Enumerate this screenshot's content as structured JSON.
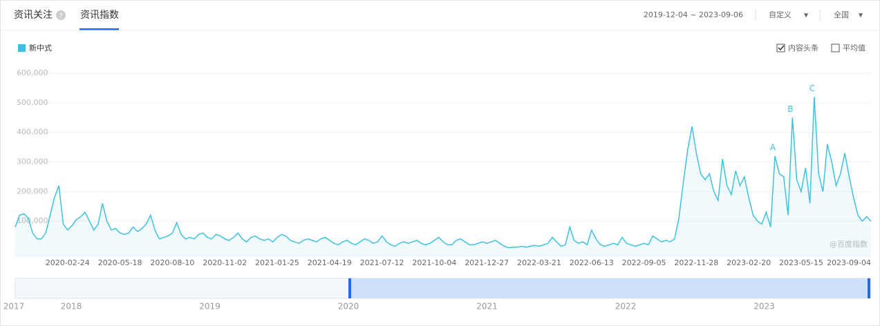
{
  "header": {
    "tabs": [
      "资讯关注",
      "资讯指数"
    ],
    "date_range": "2019-12-04 ~ 2023-09-06",
    "period": "自定义",
    "region": "全国"
  },
  "options": {
    "checkboxes": [
      {
        "label": "内容头条",
        "checked": true
      },
      {
        "label": "平均值",
        "checked": false
      }
    ]
  },
  "watermark": "@百度指数",
  "range_slider": {
    "years": [
      "2017",
      "2018",
      "2019",
      "2020",
      "2021",
      "2022",
      "2023"
    ]
  },
  "chart_data": {
    "type": "line",
    "categories": [
      null,
      null,
      null,
      null,
      null,
      null,
      null,
      null,
      null,
      null,
      null,
      null,
      "2020-02-24",
      null,
      null,
      null,
      null,
      null,
      null,
      null,
      null,
      null,
      null,
      null,
      "2020-05-18",
      null,
      null,
      null,
      null,
      null,
      null,
      null,
      null,
      null,
      null,
      null,
      "2020-08-10",
      null,
      null,
      null,
      null,
      null,
      null,
      null,
      null,
      null,
      null,
      null,
      "2020-11-02",
      null,
      null,
      null,
      null,
      null,
      null,
      null,
      null,
      null,
      null,
      null,
      "2021-01-25",
      null,
      null,
      null,
      null,
      null,
      null,
      null,
      null,
      null,
      null,
      null,
      "2021-04-19",
      null,
      null,
      null,
      null,
      null,
      null,
      null,
      null,
      null,
      null,
      null,
      "2021-07-12",
      null,
      null,
      null,
      null,
      null,
      null,
      null,
      null,
      null,
      null,
      null,
      "2021-10-04",
      null,
      null,
      null,
      null,
      null,
      null,
      null,
      null,
      null,
      null,
      null,
      "2021-12-27",
      null,
      null,
      null,
      null,
      null,
      null,
      null,
      null,
      null,
      null,
      null,
      "2022-03-21",
      null,
      null,
      null,
      null,
      null,
      null,
      null,
      null,
      null,
      null,
      null,
      "2022-06-13",
      null,
      null,
      null,
      null,
      null,
      null,
      null,
      null,
      null,
      null,
      null,
      "2022-09-05",
      null,
      null,
      null,
      null,
      null,
      null,
      null,
      null,
      null,
      null,
      null,
      "2022-11-28",
      null,
      null,
      null,
      null,
      null,
      null,
      null,
      null,
      null,
      null,
      null,
      "2023-02-20",
      null,
      null,
      null,
      null,
      null,
      null,
      null,
      null,
      null,
      null,
      null,
      "2023-05-15",
      null,
      null,
      null,
      null,
      null,
      null,
      null,
      null,
      null,
      null,
      null,
      null,
      null,
      null,
      null,
      "2023-09-04"
    ],
    "series": [
      {
        "name": "新中式",
        "color": "#3ec1e0",
        "values": [
          80000,
          120000,
          125000,
          110000,
          60000,
          40000,
          40000,
          60000,
          120000,
          180000,
          220000,
          90000,
          70000,
          85000,
          105000,
          115000,
          130000,
          100000,
          70000,
          90000,
          160000,
          100000,
          70000,
          75000,
          60000,
          55000,
          60000,
          80000,
          65000,
          75000,
          90000,
          120000,
          70000,
          40000,
          45000,
          50000,
          60000,
          95000,
          55000,
          40000,
          45000,
          40000,
          55000,
          60000,
          45000,
          40000,
          55000,
          50000,
          40000,
          35000,
          45000,
          60000,
          40000,
          30000,
          45000,
          50000,
          40000,
          35000,
          40000,
          30000,
          45000,
          55000,
          50000,
          35000,
          30000,
          25000,
          35000,
          40000,
          35000,
          30000,
          40000,
          45000,
          35000,
          25000,
          20000,
          30000,
          35000,
          25000,
          20000,
          30000,
          40000,
          35000,
          25000,
          30000,
          50000,
          30000,
          20000,
          15000,
          25000,
          30000,
          25000,
          30000,
          35000,
          25000,
          20000,
          25000,
          35000,
          45000,
          30000,
          20000,
          20000,
          35000,
          40000,
          30000,
          20000,
          20000,
          25000,
          30000,
          25000,
          30000,
          35000,
          25000,
          15000,
          10000,
          12000,
          12000,
          15000,
          12000,
          15000,
          18000,
          15000,
          20000,
          25000,
          45000,
          30000,
          15000,
          20000,
          80000,
          35000,
          25000,
          30000,
          20000,
          70000,
          40000,
          20000,
          15000,
          20000,
          25000,
          20000,
          45000,
          25000,
          20000,
          15000,
          20000,
          25000,
          20000,
          50000,
          40000,
          30000,
          35000,
          30000,
          40000,
          110000,
          230000,
          340000,
          420000,
          330000,
          260000,
          240000,
          260000,
          200000,
          170000,
          310000,
          220000,
          190000,
          270000,
          220000,
          250000,
          180000,
          120000,
          100000,
          90000,
          130000,
          80000,
          320000,
          260000,
          250000,
          120000,
          450000,
          240000,
          200000,
          280000,
          160000,
          520000,
          260000,
          200000,
          360000,
          300000,
          220000,
          260000,
          330000,
          250000,
          180000,
          120000,
          100000,
          115000,
          100000
        ]
      }
    ],
    "annotations": [
      {
        "text": "A",
        "point": 174
      },
      {
        "text": "B",
        "point": 178
      },
      {
        "text": "C",
        "point": 183
      }
    ],
    "ylim": [
      0,
      600000
    ],
    "yticks": [
      {
        "value": 100000,
        "label": "100,000"
      },
      {
        "value": 200000,
        "label": "200,000"
      },
      {
        "value": 300000,
        "label": "300,000"
      },
      {
        "value": 400000,
        "label": "400,000"
      },
      {
        "value": 500000,
        "label": "500,000"
      },
      {
        "value": 600000,
        "label": "600,000"
      }
    ],
    "grid": true,
    "legend": "top-left"
  }
}
